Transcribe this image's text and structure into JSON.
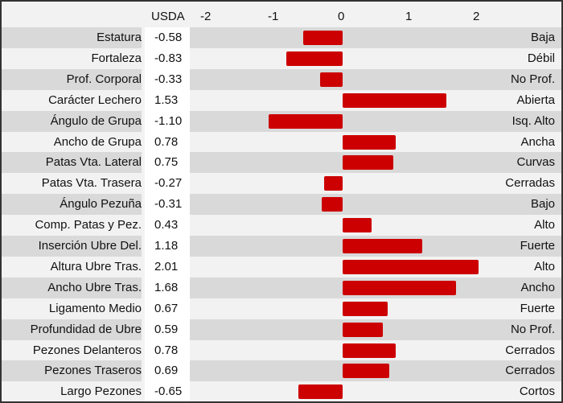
{
  "chart_data": {
    "type": "bar",
    "orientation": "horizontal",
    "value_header": "USDA",
    "xticks": [
      "-2",
      "-1",
      "0",
      "1",
      "2"
    ],
    "xlim": [
      -2,
      2.2
    ],
    "bar_color": "#cc0000",
    "categories": [
      "Estatura",
      "Fortaleza",
      "Prof. Corporal",
      "Carácter Lechero",
      "Ángulo de Grupa",
      "Ancho de Grupa",
      "Patas Vta. Lateral",
      "Patas Vta. Trasera",
      "Ángulo Pezuña",
      "Comp. Patas y Pez.",
      "Inserción Ubre Del.",
      "Altura Ubre Tras.",
      "Ancho Ubre Tras.",
      "Ligamento Medio",
      "Profundidad de Ubre",
      "Pezones Delanteros",
      "Pezones Traseros",
      "Largo Pezones"
    ],
    "values": [
      -0.58,
      -0.83,
      -0.33,
      1.53,
      -1.1,
      0.78,
      0.75,
      -0.27,
      -0.31,
      0.43,
      1.18,
      2.01,
      1.68,
      0.67,
      0.59,
      0.78,
      0.69,
      -0.65
    ],
    "value_labels": [
      "-0.58",
      "-0.83",
      "-0.33",
      "1.53",
      "-1.10",
      "0.78",
      "0.75",
      "-0.27",
      "-0.31",
      "0.43",
      "1.18",
      "2.01",
      "1.68",
      "0.67",
      "0.59",
      "0.78",
      "0.69",
      "-0.65"
    ],
    "descriptors": [
      "Baja",
      "Débil",
      "No Prof.",
      "Abierta",
      "Isq. Alto",
      "Ancha",
      "Curvas",
      "Cerradas",
      "Bajo",
      "Alto",
      "Fuerte",
      "Alto",
      "Ancho",
      "Fuerte",
      "No Prof.",
      "Cerrados",
      "Cerrados",
      "Cortos"
    ]
  }
}
